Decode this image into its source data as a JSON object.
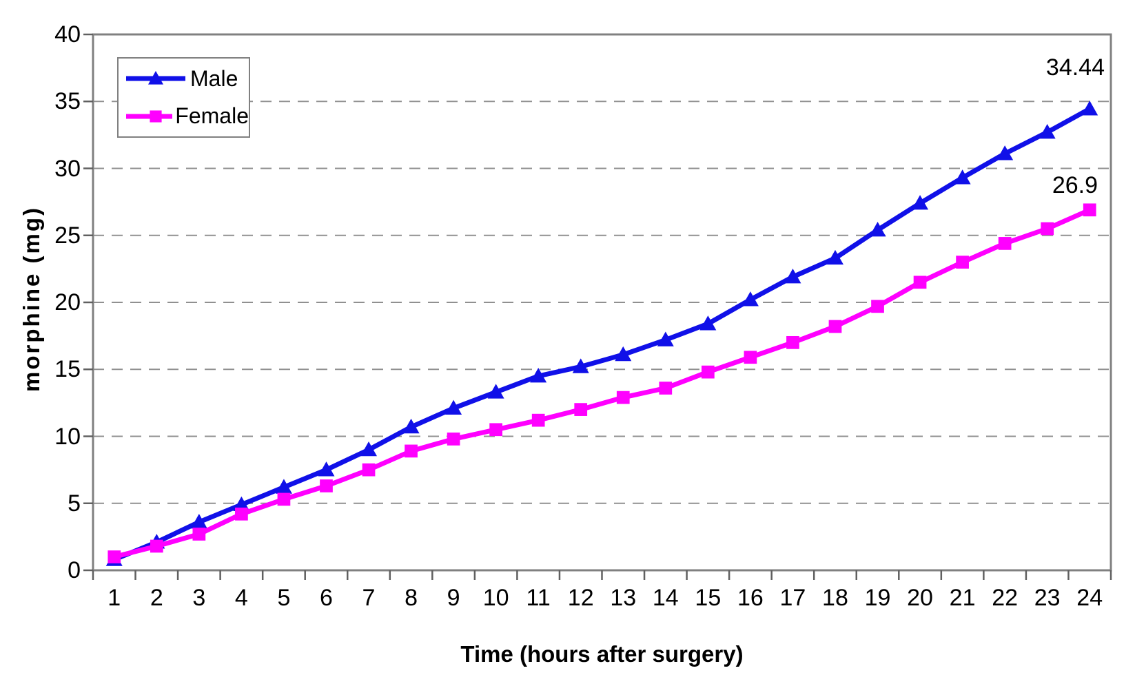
{
  "chart_data": {
    "type": "line",
    "xlabel": "Time (hours after surgery)",
    "ylabel": "morphine (mg)",
    "x": [
      1,
      2,
      3,
      4,
      5,
      6,
      7,
      8,
      9,
      10,
      11,
      12,
      13,
      14,
      15,
      16,
      17,
      18,
      19,
      20,
      21,
      22,
      23,
      24
    ],
    "ylim": [
      0,
      40
    ],
    "yticks": [
      0,
      5,
      10,
      15,
      20,
      25,
      30,
      35,
      40
    ],
    "grid": "horizontal dashed gridlines at every 5, on",
    "legend_position": "top-left inside plot",
    "axis_color": "#808080",
    "grid_color": "#909090",
    "tick_color": "#606060",
    "series": [
      {
        "name": "Male",
        "color": "#1010E8",
        "marker": "triangle-up",
        "values": [
          0.8,
          2.1,
          3.6,
          4.9,
          6.2,
          7.5,
          9.0,
          10.7,
          12.1,
          13.3,
          14.5,
          15.2,
          16.1,
          17.2,
          18.4,
          20.2,
          21.9,
          23.3,
          25.4,
          27.4,
          29.3,
          31.1,
          32.7,
          34.44
        ],
        "end_label": "34.44"
      },
      {
        "name": "Female",
        "color": "#FF00FF",
        "marker": "square",
        "values": [
          1.0,
          1.8,
          2.7,
          4.2,
          5.3,
          6.3,
          7.5,
          8.9,
          9.8,
          10.5,
          11.2,
          12.0,
          12.9,
          13.6,
          14.8,
          15.9,
          17.0,
          18.2,
          19.7,
          21.5,
          23.0,
          24.4,
          25.5,
          26.9
        ],
        "end_label": "26.9"
      }
    ]
  }
}
